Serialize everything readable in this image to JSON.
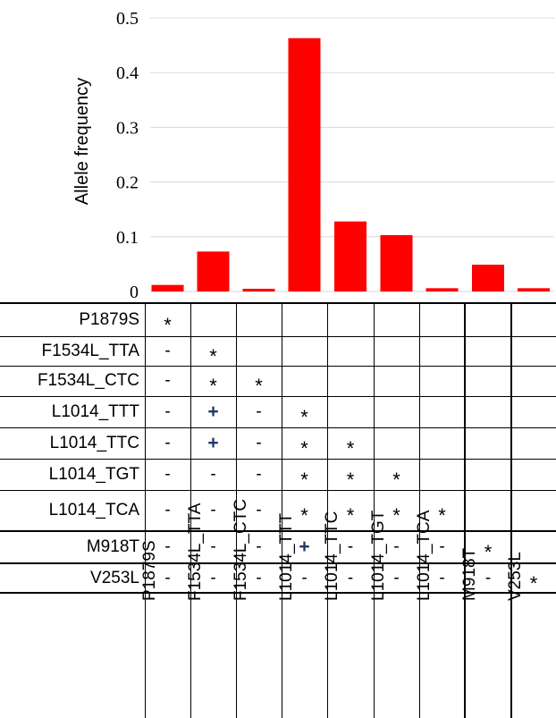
{
  "chart_data": {
    "type": "bar",
    "categories": [
      "P1879S",
      "F1534L_TTA",
      "F1534L_CTC",
      "L1014_TTT",
      "L1014_TTC",
      "L1014_TGT",
      "L1014_TCA",
      "M918T",
      "V253L"
    ],
    "values": [
      0.012,
      0.073,
      0.005,
      0.463,
      0.128,
      0.103,
      0.006,
      0.049,
      0.006
    ],
    "ylabel": "Allele frequency",
    "ylim": [
      0,
      0.5
    ],
    "yticks": [
      "0",
      "0.1",
      "0.2",
      "0.3",
      "0.4",
      "0.5"
    ],
    "bar_color": "#ff0000",
    "grid": true
  },
  "matrix": {
    "row_labels": [
      "P1879S",
      "F1534L_TTA",
      "F1534L_CTC",
      "L1014_TTT",
      "L1014_TTC",
      "L1014_TGT",
      "L1014_TCA",
      "M918T",
      "V253L"
    ],
    "col_labels": [
      "P1879S",
      "F1534L_TTA",
      "F1534L_CTC",
      "L1014_TTT",
      "L1014_TTC",
      "L1014_TGT",
      "L1014_TCA",
      "M918T",
      "V253L"
    ],
    "cells": [
      [
        "*"
      ],
      [
        "-",
        "*"
      ],
      [
        "-",
        "*",
        "*"
      ],
      [
        "-",
        "+",
        "-",
        "*"
      ],
      [
        "-",
        "+",
        "-",
        "*",
        "*"
      ],
      [
        "-",
        "-",
        "-",
        "*",
        "*",
        "*"
      ],
      [
        "-",
        "-",
        "-",
        "*",
        "*",
        "*",
        "*"
      ],
      [
        "-",
        "-",
        "-",
        "+",
        "-",
        "-",
        "-",
        "*"
      ],
      [
        "-",
        "-",
        "-",
        "-",
        "-",
        "-",
        "-",
        "-",
        "*"
      ]
    ]
  }
}
